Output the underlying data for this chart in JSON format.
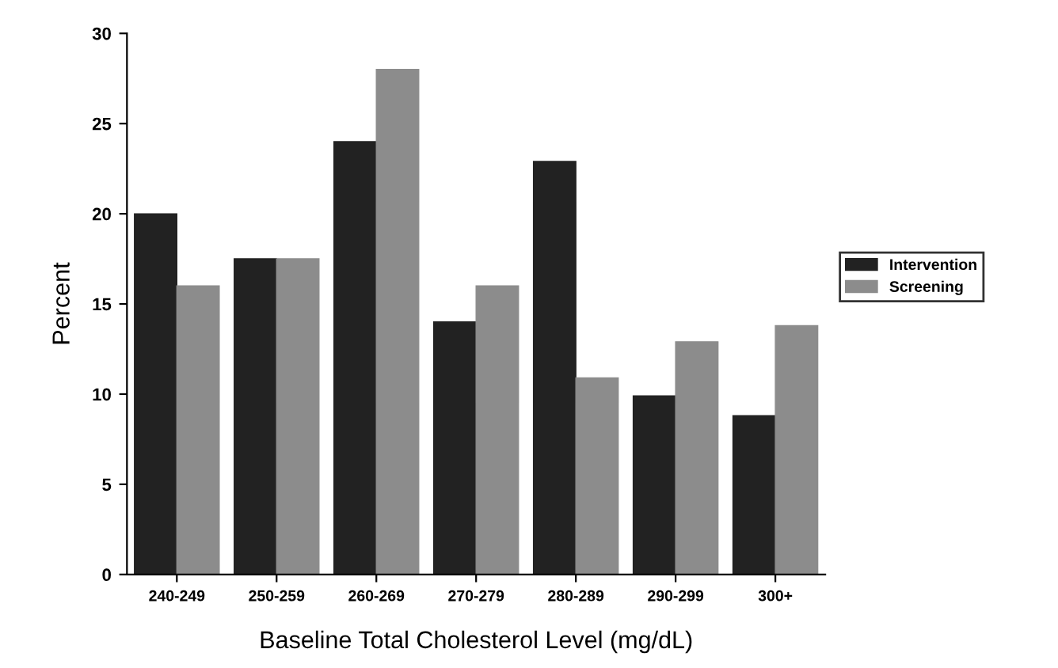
{
  "chart_data": {
    "type": "bar",
    "xlabel": "Baseline Total Cholesterol Level (mg/dL)",
    "ylabel": "Percent",
    "categories": [
      "240-249",
      "250-259",
      "260-269",
      "270-279",
      "280-289",
      "290-299",
      "300+"
    ],
    "series": [
      {
        "name": "Intervention",
        "color": "#222222",
        "values": [
          20,
          17.5,
          24,
          14,
          22.9,
          9.9,
          8.8
        ]
      },
      {
        "name": "Screening",
        "color": "#8c8c8c",
        "values": [
          16,
          17.5,
          28,
          16,
          10.9,
          12.9,
          13.8
        ]
      }
    ],
    "ylim": [
      0,
      30
    ],
    "yticks": [
      0,
      5,
      10,
      15,
      20,
      25,
      30
    ],
    "grid": false,
    "legend": "right"
  }
}
